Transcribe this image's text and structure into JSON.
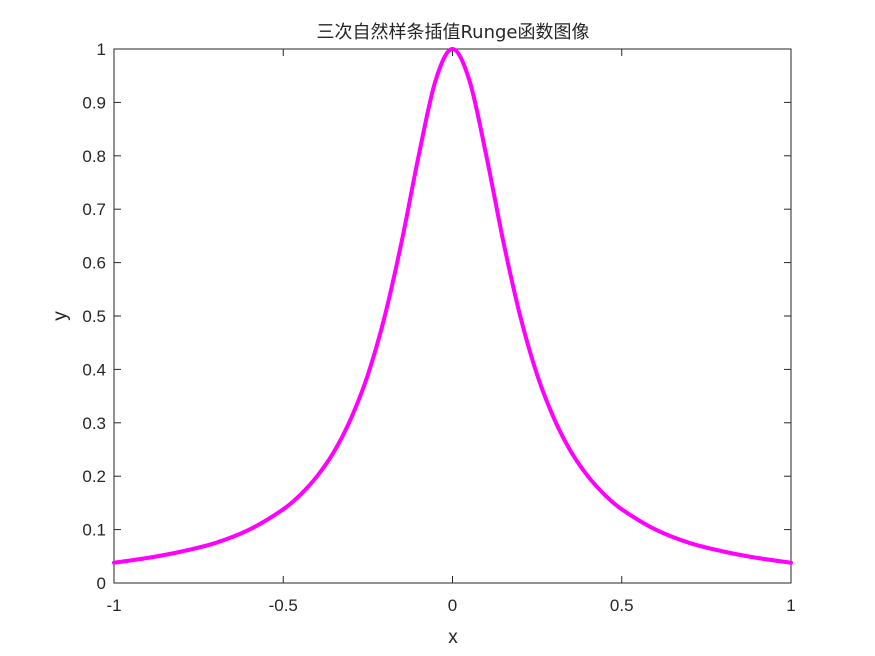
{
  "chart_data": {
    "type": "line",
    "title": "三次自然样条插值Runge函数图像",
    "xlabel": "x",
    "ylabel": "y",
    "xlim": [
      -1,
      1
    ],
    "ylim": [
      0,
      1
    ],
    "xticks": [
      -1,
      -0.5,
      0,
      0.5,
      1
    ],
    "xtick_labels": [
      "-1",
      "-0.5",
      "0",
      "0.5",
      "1"
    ],
    "yticks": [
      0,
      0.1,
      0.2,
      0.3,
      0.4,
      0.5,
      0.6,
      0.7,
      0.8,
      0.9,
      1
    ],
    "ytick_labels": [
      "0",
      "0.1",
      "0.2",
      "0.3",
      "0.4",
      "0.5",
      "0.6",
      "0.7",
      "0.8",
      "0.9",
      "1"
    ],
    "grid": false,
    "series": [
      {
        "color": "#ff00ff",
        "x": [
          -1,
          -0.9,
          -0.8,
          -0.7,
          -0.6,
          -0.5,
          -0.45,
          -0.4,
          -0.35,
          -0.3,
          -0.25,
          -0.2,
          -0.15,
          -0.1,
          -0.05,
          0,
          0.05,
          0.1,
          0.15,
          0.2,
          0.25,
          0.3,
          0.35,
          0.4,
          0.45,
          0.5,
          0.6,
          0.7,
          0.8,
          0.9,
          1
        ],
        "y": [
          0.038,
          0.047,
          0.059,
          0.075,
          0.1,
          0.138,
          0.165,
          0.2,
          0.246,
          0.308,
          0.39,
          0.5,
          0.64,
          0.8,
          0.941,
          1,
          0.941,
          0.8,
          0.64,
          0.5,
          0.39,
          0.308,
          0.246,
          0.2,
          0.165,
          0.138,
          0.1,
          0.075,
          0.059,
          0.047,
          0.038
        ]
      }
    ]
  },
  "colors": {
    "axis": "#262626",
    "line": "#ff00ff"
  }
}
